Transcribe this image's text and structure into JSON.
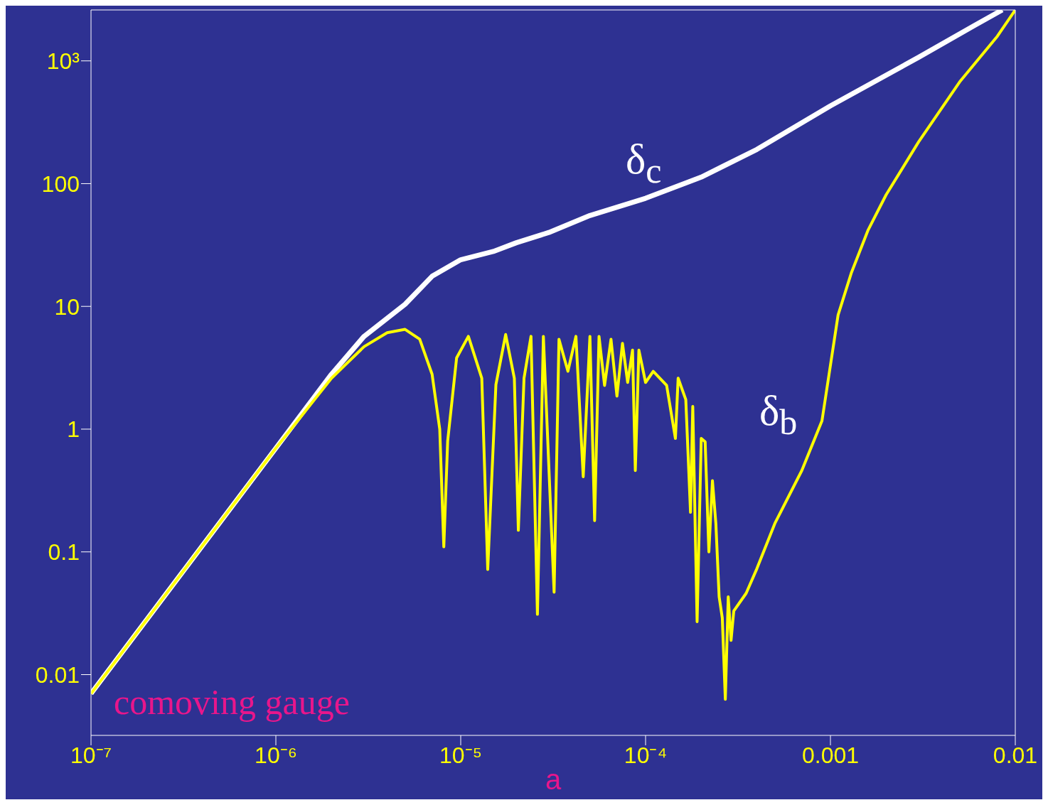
{
  "chart_data": {
    "type": "line",
    "xlabel": "a",
    "log": "xy",
    "grid": false,
    "legend": false,
    "marker": "none",
    "xlim": [
      1e-07,
      0.01
    ],
    "ylim": [
      0.0032,
      2600
    ],
    "xticks": [
      {
        "value": 1e-07,
        "label": "10⁻⁷"
      },
      {
        "value": 1e-06,
        "label": "10⁻⁶"
      },
      {
        "value": 1e-05,
        "label": "10⁻⁵"
      },
      {
        "value": 0.0001,
        "label": "10⁻⁴"
      },
      0.001,
      0.01
    ],
    "yticks": [
      0.01,
      0.1,
      1,
      10,
      100,
      {
        "value": 1000,
        "label": "10³"
      }
    ],
    "series": [
      {
        "color": "#ffffff",
        "x": [
          1e-07,
          3e-07,
          1e-06,
          2e-06,
          3e-06,
          4e-06,
          5e-06,
          7e-06,
          1e-05,
          1.5e-05,
          2e-05,
          3e-05,
          5e-05,
          0.0001,
          0.0002,
          0.0004,
          0.001,
          0.003,
          0.006,
          0.0085
        ],
        "values": [
          0.007,
          0.063,
          0.7,
          2.8,
          5.7,
          8,
          10.4,
          17.6,
          24,
          28,
          33,
          40,
          55,
          76,
          113,
          190,
          430,
          1070,
          1940,
          2600
        ]
      },
      {
        "color": "#ffff00",
        "x": [
          1e-07,
          3e-07,
          1e-06,
          2e-06,
          3e-06,
          4e-06,
          5e-06,
          6e-06,
          7e-06,
          7.7e-06,
          8.1e-06,
          8.5e-06,
          9.5e-06,
          1.1e-05,
          1.3e-05,
          1.4e-05,
          1.55e-05,
          1.75e-05,
          1.95e-05,
          2.05e-05,
          2.2e-05,
          2.4e-05,
          2.6e-05,
          2.8e-05,
          3.2e-05,
          3.4e-05,
          3.8e-05,
          4.2e-05,
          4.6e-05,
          5e-05,
          5.3e-05,
          5.6e-05,
          6e-05,
          6.5e-05,
          7e-05,
          7.5e-05,
          8e-05,
          8.5e-05,
          8.8e-05,
          9.2e-05,
          0.0001,
          0.00011,
          0.00013,
          0.000145,
          0.00015,
          0.000165,
          0.000175,
          0.00018,
          0.00019,
          0.0002,
          0.00021,
          0.00022,
          0.00023,
          0.00024,
          0.00025,
          0.00026,
          0.00027,
          0.00028,
          0.00029,
          0.0003,
          0.00035,
          0.0004,
          0.0005,
          0.0007,
          0.0009,
          0.0011,
          0.0013,
          0.0016,
          0.002,
          0.003,
          0.005,
          0.008,
          0.01
        ],
        "values": [
          0.007,
          0.063,
          0.7,
          2.6,
          4.7,
          6.1,
          6.5,
          5.4,
          2.8,
          1,
          0.11,
          0.8,
          3.8,
          5.7,
          2.6,
          0.072,
          2.3,
          5.9,
          2.6,
          0.15,
          2.6,
          5.7,
          0.031,
          5.7,
          0.047,
          5.4,
          2.96,
          5.7,
          0.41,
          5.7,
          0.18,
          5.7,
          2.27,
          5.4,
          1.86,
          5,
          2.4,
          4.4,
          0.46,
          4.4,
          2.4,
          2.96,
          2.27,
          0.84,
          2.6,
          1.74,
          0.21,
          1.53,
          0.027,
          0.84,
          0.79,
          0.1,
          0.38,
          0.17,
          0.043,
          0.029,
          0.0063,
          0.043,
          0.019,
          0.033,
          0.046,
          0.073,
          0.17,
          0.46,
          1.17,
          8.5,
          18.9,
          42,
          81,
          219,
          674,
          1590,
          2600
        ]
      }
    ],
    "annotations": [
      "δ$_{c}$",
      "δ$_{b}$",
      "comoving gauge"
    ]
  }
}
